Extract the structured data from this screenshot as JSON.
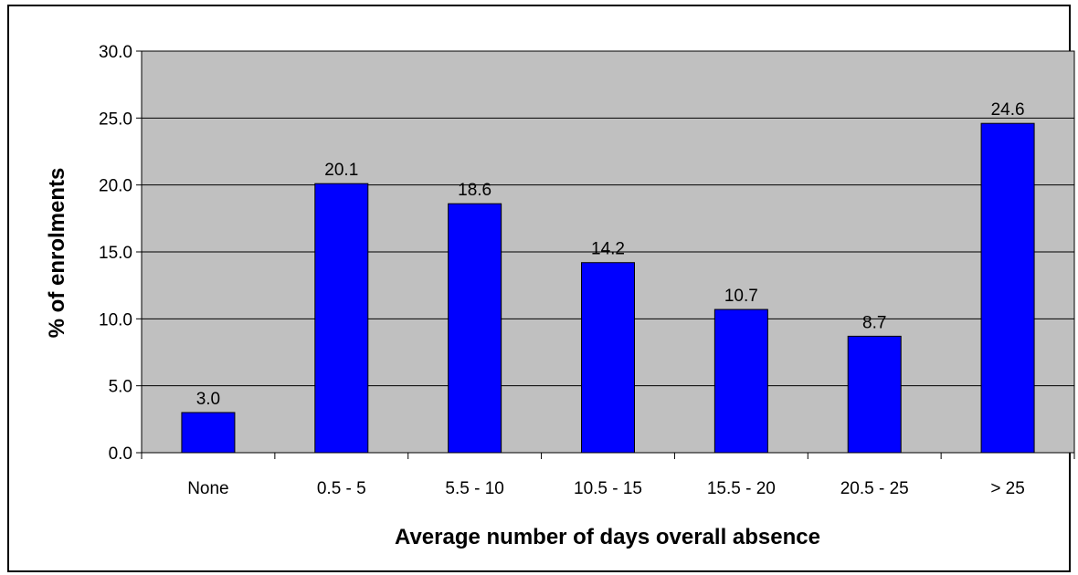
{
  "chart_data": {
    "type": "bar",
    "title": "",
    "xlabel": "Average number of days overall absence",
    "ylabel": "% of enrolments",
    "categories": [
      "None",
      "0.5 - 5",
      "5.5 - 10",
      "10.5 - 15",
      "15.5 - 20",
      "20.5 - 25",
      "> 25"
    ],
    "values": [
      3.0,
      20.1,
      18.6,
      14.2,
      10.7,
      8.7,
      24.6
    ],
    "value_labels": [
      "3.0",
      "20.1",
      "18.6",
      "14.2",
      "10.7",
      "8.7",
      "24.6"
    ],
    "y_ticks": [
      "0.0",
      "5.0",
      "10.0",
      "15.0",
      "20.0",
      "25.0",
      "30.0"
    ],
    "ylim": [
      0,
      30
    ],
    "grid": true,
    "legend": "none",
    "colors": {
      "bar_fill": "#0000ff",
      "plot_background": "#c0c0c0",
      "gridline": "#000000"
    }
  }
}
